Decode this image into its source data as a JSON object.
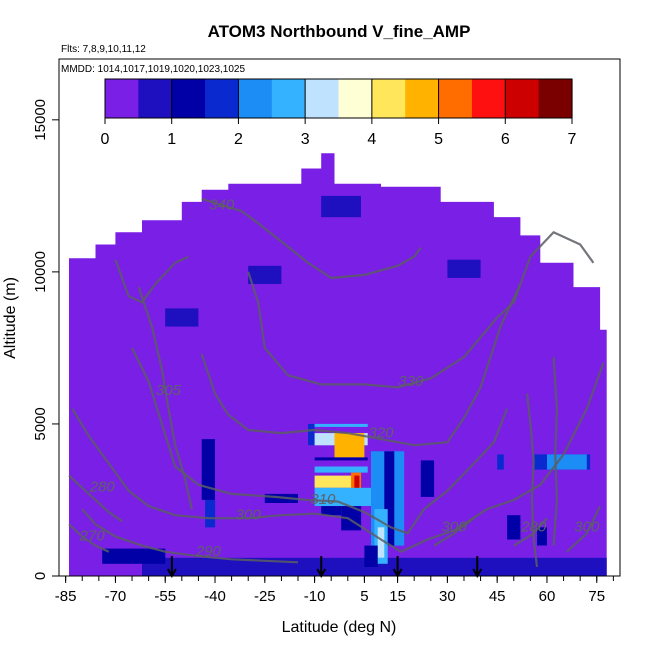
{
  "chart_data": {
    "type": "heatmap",
    "title": "ATOM3 Northbound V_fine_AMP",
    "subtitle_flights": "Flts: 7,8,9,10,11,12",
    "subtitle_dates": "MMDD: 1014,1017,1019,1020,1023,1025",
    "xlabel": "Latitude (deg N)",
    "ylabel": "Altitude (m)",
    "xlim": [
      -87,
      82
    ],
    "ylim": [
      0,
      17000
    ],
    "x_ticks": [
      -85,
      -70,
      -55,
      -40,
      -25,
      -10,
      5,
      15,
      30,
      45,
      60,
      75
    ],
    "x_tick_labels": [
      "-85",
      "-70",
      "-55",
      "-40",
      "-25",
      "-10",
      "5",
      "15",
      "30",
      "45",
      "60",
      "75"
    ],
    "y_ticks": [
      0,
      5000,
      10000,
      15000
    ],
    "y_tick_labels": [
      "0",
      "5000",
      "10000",
      "15000"
    ],
    "colorbar": {
      "min": 0,
      "max": 7,
      "ticks": [
        0,
        1,
        2,
        3,
        4,
        5,
        6,
        7
      ],
      "tick_labels": [
        "0",
        "1",
        "2",
        "3",
        "4",
        "5",
        "6",
        "7"
      ],
      "colors": [
        "#7a1fe6",
        "#1e0fbf",
        "#0000a6",
        "#0a2ad0",
        "#1c8df5",
        "#35b2ff",
        "#bfe3ff",
        "#ffffd5",
        "#ffe65a",
        "#ffb300",
        "#ff6c00",
        "#ff1010",
        "#cc0000",
        "#7a0000"
      ]
    },
    "background_value": 0.4,
    "blocks": [
      {
        "x0": -62,
        "x1": 78,
        "y0": 0,
        "y1": 600,
        "v": 0.8
      },
      {
        "x0": -74,
        "x1": -55,
        "y0": 400,
        "y1": 900,
        "v": 1.1
      },
      {
        "x0": -44,
        "x1": -40,
        "y0": 2500,
        "y1": 4500,
        "v": 1.3
      },
      {
        "x0": -43,
        "x1": -40,
        "y0": 1600,
        "y1": 2500,
        "v": 1.8
      },
      {
        "x0": -12,
        "x1": -10,
        "y0": 4300,
        "y1": 5000,
        "v": 1.9
      },
      {
        "x0": -10,
        "x1": 6,
        "y0": 4900,
        "y1": 5000,
        "v": 2.9
      },
      {
        "x0": -10,
        "x1": 6,
        "y0": 4300,
        "y1": 4700,
        "v": 3.2
      },
      {
        "x0": -4,
        "x1": 5,
        "y0": 3900,
        "y1": 4700,
        "v": 4.6
      },
      {
        "x0": -10,
        "x1": 6,
        "y0": 3800,
        "y1": 3900,
        "v": 1.2
      },
      {
        "x0": -10,
        "x1": 6,
        "y0": 3400,
        "y1": 3600,
        "v": 2.6
      },
      {
        "x0": -10,
        "x1": 2,
        "y0": 2900,
        "y1": 3300,
        "v": 4.2
      },
      {
        "x0": 1,
        "x1": 4,
        "y0": 2500,
        "y1": 3400,
        "v": 5.3
      },
      {
        "x0": 2,
        "x1": 3.5,
        "y0": 2700,
        "y1": 3300,
        "v": 6.2
      },
      {
        "x0": -10,
        "x1": 8,
        "y0": 2300,
        "y1": 2900,
        "v": 2.7
      },
      {
        "x0": 7,
        "x1": 17,
        "y0": 1000,
        "y1": 4100,
        "v": 2.3
      },
      {
        "x0": 11,
        "x1": 14,
        "y0": 1000,
        "y1": 4100,
        "v": 1.3
      },
      {
        "x0": 8,
        "x1": 12,
        "y0": 400,
        "y1": 2200,
        "v": 2.8
      },
      {
        "x0": 9,
        "x1": 11,
        "y0": 600,
        "y1": 1600,
        "v": 3.2
      },
      {
        "x0": 5,
        "x1": 9,
        "y0": 300,
        "y1": 1000,
        "v": 1.4
      },
      {
        "x0": -2,
        "x1": 4,
        "y0": 1500,
        "y1": 2300,
        "v": 1.1
      },
      {
        "x0": -8,
        "x1": -2,
        "y0": 2000,
        "y1": 2300,
        "v": 1.3
      },
      {
        "x0": 56,
        "x1": 73,
        "y0": 3500,
        "y1": 4000,
        "v": 1.9
      },
      {
        "x0": 60,
        "x1": 72,
        "y0": 3500,
        "y1": 4000,
        "v": 2.4
      },
      {
        "x0": 45,
        "x1": 47,
        "y0": 3500,
        "y1": 4000,
        "v": 1.6
      },
      {
        "x0": 48,
        "x1": 52,
        "y0": 1200,
        "y1": 2000,
        "v": 1.2
      },
      {
        "x0": 57,
        "x1": 60,
        "y0": 1000,
        "y1": 1600,
        "v": 1.4
      },
      {
        "x0": 22,
        "x1": 26,
        "y0": 2600,
        "y1": 3800,
        "v": 1.1
      },
      {
        "x0": -25,
        "x1": -15,
        "y0": 2400,
        "y1": 2700,
        "v": 1.0
      },
      {
        "x0": -8,
        "x1": 4,
        "y0": 11800,
        "y1": 12500,
        "v": 0.9
      },
      {
        "x0": -30,
        "x1": -20,
        "y0": 9600,
        "y1": 10200,
        "v": 0.9
      },
      {
        "x0": -55,
        "x1": -45,
        "y0": 8200,
        "y1": 8800,
        "v": 0.8
      },
      {
        "x0": 30,
        "x1": 40,
        "y0": 9800,
        "y1": 10400,
        "v": 0.8
      }
    ],
    "contours": [
      {
        "label": "340",
        "label_x": -38,
        "label_y": 12050,
        "points": [
          [
            -44,
            12400
          ],
          [
            -38,
            12200
          ],
          [
            -32,
            12000
          ],
          [
            -27,
            11600
          ],
          [
            -20,
            11000
          ],
          [
            -12,
            10300
          ],
          [
            -5,
            9800
          ],
          [
            5,
            9900
          ],
          [
            15,
            10200
          ],
          [
            20,
            10500
          ],
          [
            22,
            10800
          ]
        ]
      },
      {
        "label": "330",
        "label_x": 19,
        "label_y": 6250,
        "points": [
          [
            -30,
            10000
          ],
          [
            -27,
            9000
          ],
          [
            -25,
            7500
          ],
          [
            -18,
            6600
          ],
          [
            -8,
            6300
          ],
          [
            5,
            6300
          ],
          [
            15,
            6200
          ],
          [
            25,
            6500
          ],
          [
            35,
            7200
          ],
          [
            45,
            8500
          ],
          [
            50,
            9000
          ],
          [
            55,
            10500
          ],
          [
            62,
            11300
          ],
          [
            70,
            10900
          ],
          [
            74,
            10300
          ]
        ]
      },
      {
        "label": "320",
        "label_x": 10,
        "label_y": 4550,
        "points": [
          [
            -44,
            7300
          ],
          [
            -40,
            6000
          ],
          [
            -36,
            5300
          ],
          [
            -30,
            4800
          ],
          [
            -20,
            4700
          ],
          [
            -10,
            4800
          ],
          [
            0,
            4700
          ],
          [
            10,
            4500
          ],
          [
            20,
            4300
          ],
          [
            30,
            4400
          ],
          [
            35,
            5200
          ],
          [
            40,
            6200
          ],
          [
            46,
            8200
          ],
          [
            52,
            9600
          ]
        ]
      },
      {
        "label": "310",
        "label_x": -7.5,
        "label_y": 2360,
        "points": [
          [
            -65,
            7500
          ],
          [
            -60,
            6400
          ],
          [
            -56,
            5000
          ],
          [
            -52,
            3600
          ],
          [
            -45,
            3000
          ],
          [
            -35,
            2700
          ],
          [
            -22,
            2600
          ],
          [
            -12,
            2500
          ],
          [
            -3,
            2450
          ],
          [
            5,
            2100
          ],
          [
            13,
            1600
          ],
          [
            18,
            1400
          ],
          [
            23,
            2200
          ],
          [
            30,
            2800
          ],
          [
            38,
            3700
          ],
          [
            44,
            4400
          ],
          [
            48,
            5500
          ]
        ]
      },
      {
        "label": "300",
        "label_x": -30,
        "label_y": 1860,
        "points": [
          [
            -83,
            5500
          ],
          [
            -78,
            4600
          ],
          [
            -72,
            3700
          ],
          [
            -66,
            2800
          ],
          [
            -60,
            2300
          ],
          [
            -52,
            2000
          ],
          [
            -42,
            1900
          ],
          [
            -30,
            1900
          ],
          [
            -20,
            2000
          ],
          [
            -10,
            2050
          ],
          [
            0,
            1900
          ],
          [
            10,
            1200
          ],
          [
            16,
            800
          ],
          [
            24,
            1200
          ],
          [
            32,
            1500
          ],
          [
            42,
            2200
          ],
          [
            50,
            2500
          ],
          [
            58,
            3000
          ],
          [
            65,
            4000
          ],
          [
            72,
            5500
          ],
          [
            77,
            7000
          ]
        ]
      },
      {
        "label": "290",
        "label_x": -42,
        "label_y": 660,
        "points": [
          [
            -80,
            2200
          ],
          [
            -76,
            1700
          ],
          [
            -70,
            1300
          ],
          [
            -62,
            1000
          ],
          [
            -55,
            800
          ],
          [
            -45,
            650
          ],
          [
            -35,
            550
          ],
          [
            -25,
            500
          ],
          [
            -15,
            450
          ]
        ]
      },
      {
        "label": "280",
        "label_x": -74,
        "label_y": 2780,
        "points": [
          [
            -84,
            3300
          ],
          [
            -80,
            2900
          ],
          [
            -76,
            2500
          ],
          [
            -72,
            2100
          ],
          [
            -68,
            1800
          ]
        ]
      },
      {
        "label": "270",
        "label_x": -77,
        "label_y": 1160,
        "points": [
          [
            -84,
            1700
          ],
          [
            -80,
            1300
          ],
          [
            -76,
            1000
          ],
          [
            -72,
            800
          ]
        ]
      },
      {
        "label": "305",
        "label_x": -54,
        "label_y": 5950,
        "points": [
          [
            -63,
            9500
          ],
          [
            -59,
            8200
          ],
          [
            -56,
            6800
          ],
          [
            -54,
            5500
          ],
          [
            -52,
            4300
          ],
          [
            -49,
            3200
          ],
          [
            -47,
            2200
          ]
        ]
      },
      {
        "label": "300",
        "label_x": 32,
        "label_y": 1460,
        "points": [
          [
            26,
            1000
          ],
          [
            32,
            1400
          ],
          [
            38,
            1900
          ]
        ]
      },
      {
        "label": "280",
        "label_x": 56,
        "label_y": 1460,
        "points": [
          [
            50,
            1000
          ],
          [
            56,
            1400
          ],
          [
            60,
            1900
          ]
        ]
      },
      {
        "label": "300",
        "label_x": 72,
        "label_y": 1460,
        "points": [
          [
            66,
            800
          ],
          [
            72,
            1400
          ],
          [
            76,
            2300
          ]
        ]
      },
      {
        "label": "",
        "label_x": 0,
        "label_y": 0,
        "points": [
          [
            54,
            6000
          ],
          [
            55,
            5000
          ],
          [
            56,
            3800
          ],
          [
            55.5,
            2500
          ],
          [
            56,
            1200
          ],
          [
            57,
            300
          ]
        ]
      },
      {
        "label": "",
        "label_x": 0,
        "label_y": 0,
        "points": [
          [
            62,
            7200
          ],
          [
            63,
            5500
          ],
          [
            62.5,
            4000
          ],
          [
            63,
            2500
          ],
          [
            62,
            1000
          ]
        ]
      },
      {
        "label": "",
        "label_x": 0,
        "label_y": 0,
        "points": [
          [
            -70,
            10400
          ],
          [
            -66,
            9200
          ],
          [
            -62,
            9000
          ],
          [
            -58,
            9600
          ],
          [
            -52,
            10300
          ],
          [
            -48,
            10500
          ]
        ]
      }
    ],
    "arrows_at_latitude": [
      -53,
      -8,
      15,
      39
    ]
  }
}
